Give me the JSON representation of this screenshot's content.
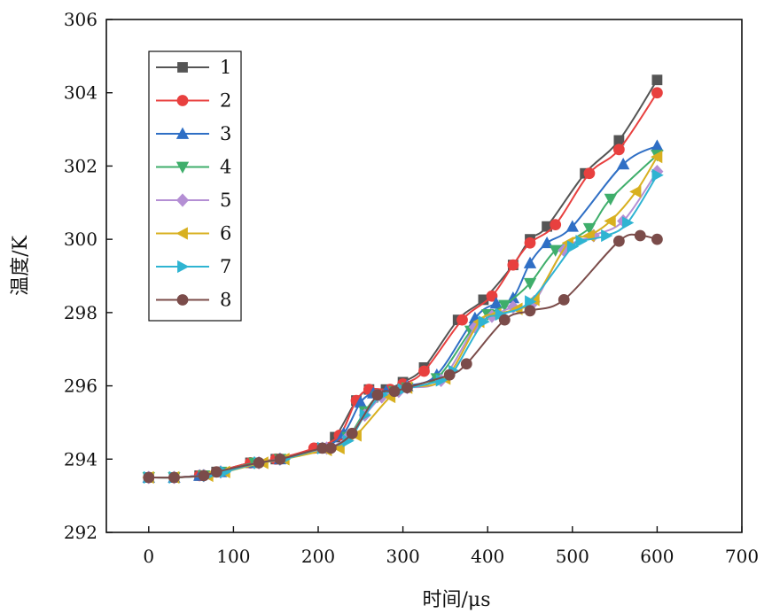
{
  "chart_data": {
    "type": "line",
    "title": "",
    "xlabel": "时间/μs",
    "ylabel": "温度/K",
    "xlim": [
      -50,
      700
    ],
    "ylim": [
      292,
      306
    ],
    "xticks": [
      0,
      100,
      200,
      300,
      400,
      500,
      600,
      700
    ],
    "yticks": [
      292,
      294,
      296,
      298,
      300,
      302,
      304,
      306
    ],
    "grid": false,
    "legend_position": "top-left",
    "series": [
      {
        "name": "1",
        "color": "#555555",
        "marker": "square",
        "points": [
          [
            0,
            293.5
          ],
          [
            30,
            293.5
          ],
          [
            60,
            293.55
          ],
          [
            80,
            293.65
          ],
          [
            120,
            293.9
          ],
          [
            150,
            294.0
          ],
          [
            200,
            294.3
          ],
          [
            220,
            294.6
          ],
          [
            245,
            295.6
          ],
          [
            260,
            295.9
          ],
          [
            280,
            295.9
          ],
          [
            300,
            296.1
          ],
          [
            325,
            296.5
          ],
          [
            365,
            297.8
          ],
          [
            395,
            298.35
          ],
          [
            430,
            299.3
          ],
          [
            450,
            300.0
          ],
          [
            470,
            300.35
          ],
          [
            515,
            301.8
          ],
          [
            555,
            302.7
          ],
          [
            600,
            304.35
          ]
        ]
      },
      {
        "name": "2",
        "color": "#e8403f",
        "marker": "circle",
        "points": [
          [
            0,
            293.5
          ],
          [
            30,
            293.5
          ],
          [
            60,
            293.55
          ],
          [
            80,
            293.65
          ],
          [
            120,
            293.9
          ],
          [
            150,
            294.0
          ],
          [
            195,
            294.3
          ],
          [
            225,
            294.65
          ],
          [
            245,
            295.6
          ],
          [
            260,
            295.9
          ],
          [
            285,
            295.9
          ],
          [
            300,
            296.05
          ],
          [
            325,
            296.4
          ],
          [
            370,
            297.8
          ],
          [
            405,
            298.45
          ],
          [
            430,
            299.3
          ],
          [
            450,
            299.9
          ],
          [
            480,
            300.4
          ],
          [
            520,
            301.8
          ],
          [
            555,
            302.45
          ],
          [
            600,
            304.0
          ]
        ]
      },
      {
        "name": "3",
        "color": "#2f6fc5",
        "marker": "triangle-up",
        "points": [
          [
            0,
            293.5
          ],
          [
            30,
            293.5
          ],
          [
            60,
            293.55
          ],
          [
            85,
            293.65
          ],
          [
            125,
            293.9
          ],
          [
            155,
            294.0
          ],
          [
            205,
            294.3
          ],
          [
            230,
            294.7
          ],
          [
            250,
            295.55
          ],
          [
            265,
            295.8
          ],
          [
            280,
            295.85
          ],
          [
            305,
            296.0
          ],
          [
            340,
            296.3
          ],
          [
            385,
            297.85
          ],
          [
            410,
            298.25
          ],
          [
            430,
            298.4
          ],
          [
            450,
            299.35
          ],
          [
            470,
            299.9
          ],
          [
            500,
            300.35
          ],
          [
            560,
            302.05
          ],
          [
            600,
            302.55
          ]
        ]
      },
      {
        "name": "4",
        "color": "#3fae6b",
        "marker": "triangle-down",
        "points": [
          [
            0,
            293.5
          ],
          [
            30,
            293.5
          ],
          [
            65,
            293.55
          ],
          [
            85,
            293.65
          ],
          [
            125,
            293.9
          ],
          [
            155,
            294.0
          ],
          [
            210,
            294.3
          ],
          [
            235,
            294.6
          ],
          [
            255,
            295.3
          ],
          [
            270,
            295.7
          ],
          [
            290,
            295.85
          ],
          [
            305,
            295.95
          ],
          [
            340,
            296.2
          ],
          [
            380,
            297.5
          ],
          [
            400,
            297.95
          ],
          [
            420,
            298.2
          ],
          [
            450,
            298.8
          ],
          [
            480,
            299.7
          ],
          [
            520,
            300.3
          ],
          [
            545,
            301.1
          ],
          [
            600,
            302.3
          ]
        ]
      },
      {
        "name": "5",
        "color": "#b48fd4",
        "marker": "diamond",
        "points": [
          [
            0,
            293.5
          ],
          [
            30,
            293.5
          ],
          [
            65,
            293.55
          ],
          [
            85,
            293.65
          ],
          [
            130,
            293.9
          ],
          [
            155,
            294.0
          ],
          [
            210,
            294.3
          ],
          [
            235,
            294.6
          ],
          [
            255,
            295.2
          ],
          [
            275,
            295.7
          ],
          [
            295,
            295.85
          ],
          [
            305,
            295.95
          ],
          [
            345,
            296.15
          ],
          [
            385,
            297.6
          ],
          [
            405,
            297.9
          ],
          [
            430,
            298.15
          ],
          [
            455,
            298.3
          ],
          [
            490,
            299.7
          ],
          [
            525,
            300.1
          ],
          [
            560,
            300.5
          ],
          [
            600,
            301.85
          ]
        ]
      },
      {
        "name": "6",
        "color": "#d8b020",
        "marker": "triangle-left",
        "points": [
          [
            0,
            293.5
          ],
          [
            30,
            293.5
          ],
          [
            70,
            293.55
          ],
          [
            90,
            293.65
          ],
          [
            135,
            293.9
          ],
          [
            160,
            294.0
          ],
          [
            210,
            294.25
          ],
          [
            225,
            294.3
          ],
          [
            245,
            294.65
          ],
          [
            285,
            295.7
          ],
          [
            305,
            295.95
          ],
          [
            350,
            296.2
          ],
          [
            390,
            297.75
          ],
          [
            410,
            297.95
          ],
          [
            435,
            298.1
          ],
          [
            455,
            298.35
          ],
          [
            495,
            299.9
          ],
          [
            520,
            300.1
          ],
          [
            545,
            300.5
          ],
          [
            575,
            301.3
          ],
          [
            600,
            302.25
          ]
        ]
      },
      {
        "name": "7",
        "color": "#2fb4d2",
        "marker": "triangle-right",
        "points": [
          [
            0,
            293.5
          ],
          [
            30,
            293.5
          ],
          [
            70,
            293.55
          ],
          [
            90,
            293.65
          ],
          [
            130,
            293.9
          ],
          [
            160,
            294.0
          ],
          [
            205,
            294.3
          ],
          [
            235,
            294.5
          ],
          [
            255,
            295.2
          ],
          [
            275,
            295.75
          ],
          [
            300,
            295.9
          ],
          [
            345,
            296.15
          ],
          [
            360,
            296.4
          ],
          [
            395,
            297.75
          ],
          [
            415,
            297.95
          ],
          [
            450,
            298.3
          ],
          [
            500,
            299.8
          ],
          [
            510,
            299.95
          ],
          [
            540,
            300.1
          ],
          [
            565,
            300.45
          ],
          [
            600,
            301.75
          ]
        ]
      },
      {
        "name": "8",
        "color": "#7b4c4a",
        "marker": "circle",
        "points": [
          [
            0,
            293.5
          ],
          [
            30,
            293.5
          ],
          [
            65,
            293.55
          ],
          [
            80,
            293.65
          ],
          [
            130,
            293.9
          ],
          [
            155,
            294.0
          ],
          [
            205,
            294.3
          ],
          [
            215,
            294.3
          ],
          [
            240,
            294.7
          ],
          [
            270,
            295.75
          ],
          [
            290,
            295.85
          ],
          [
            305,
            295.95
          ],
          [
            355,
            296.3
          ],
          [
            375,
            296.6
          ],
          [
            420,
            297.8
          ],
          [
            450,
            298.05
          ],
          [
            490,
            298.35
          ],
          [
            555,
            299.95
          ],
          [
            580,
            300.1
          ],
          [
            600,
            300.0
          ]
        ]
      }
    ]
  }
}
